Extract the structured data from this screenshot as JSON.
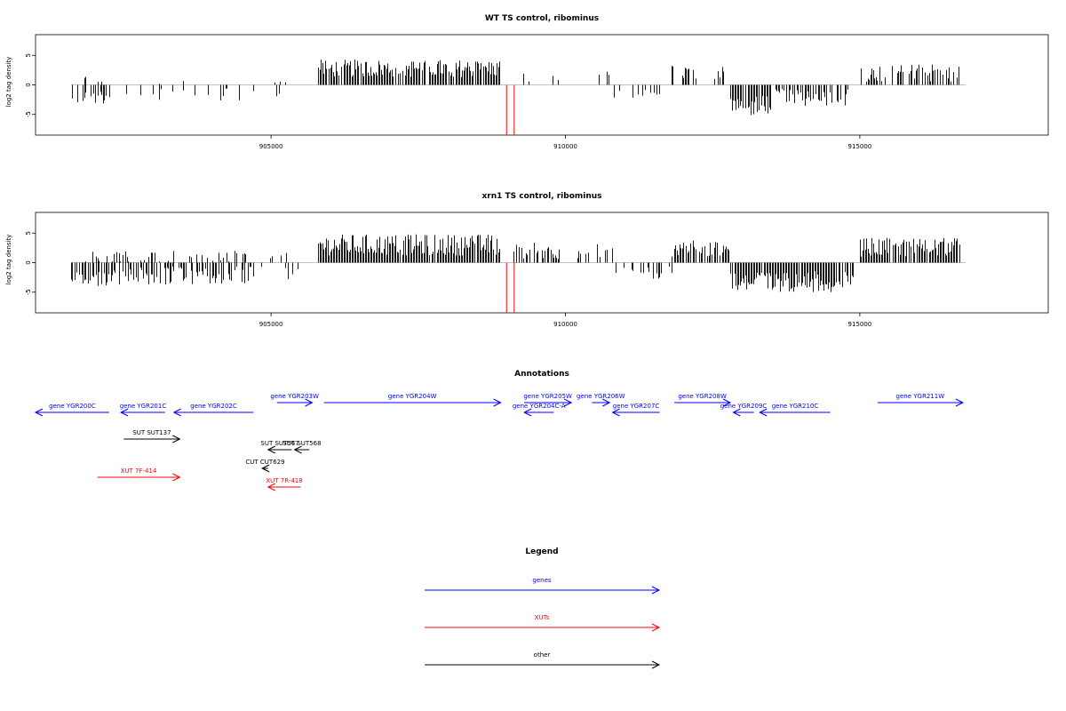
{
  "colors": {
    "bars": "#000000",
    "highlight": "#ff0000",
    "genes": "#0000ff",
    "xuts": "#ff0000",
    "other": "#000000"
  },
  "chart_data": [
    {
      "type": "bar",
      "title": "WT TS control, ribominus",
      "ylabel": "log2 tag density",
      "xlim": [
        901000,
        918200
      ],
      "ylim": [
        -8.5,
        8.5
      ],
      "xticks": [
        905000,
        910000,
        915000
      ],
      "xtick_labels": [
        "905000",
        "910000",
        "915000"
      ],
      "yticks": [
        -5,
        0,
        5
      ],
      "ytick_labels": [
        "-5",
        "0",
        "5"
      ],
      "segments": [
        {
          "from": 901600,
          "to": 902300,
          "sign": -1,
          "mean": 2.0,
          "amp": 1.2,
          "density": 0.55
        },
        {
          "from": 901800,
          "to": 902200,
          "sign": 1,
          "mean": 1.0,
          "amp": 1.0,
          "density": 0.12
        },
        {
          "from": 902400,
          "to": 903300,
          "sign": -1,
          "mean": 1.4,
          "amp": 1.3,
          "density": 0.2
        },
        {
          "from": 903300,
          "to": 904700,
          "sign": -1,
          "mean": 1.6,
          "amp": 1.3,
          "density": 0.14
        },
        {
          "from": 902900,
          "to": 903600,
          "sign": 1,
          "mean": 0.8,
          "amp": 0.8,
          "density": 0.06
        },
        {
          "from": 904700,
          "to": 905500,
          "sign": -1,
          "mean": 1.2,
          "amp": 0.9,
          "density": 0.12
        },
        {
          "from": 904900,
          "to": 905500,
          "sign": 1,
          "mean": 0.9,
          "amp": 1.0,
          "density": 0.1
        },
        {
          "from": 905800,
          "to": 908900,
          "sign": 1,
          "mean": 2.8,
          "amp": 1.5,
          "density": 0.85
        },
        {
          "from": 909100,
          "to": 909900,
          "sign": 1,
          "mean": 1.2,
          "amp": 0.9,
          "density": 0.18
        },
        {
          "from": 910500,
          "to": 910800,
          "sign": 1,
          "mean": 1.4,
          "amp": 0.9,
          "density": 0.35
        },
        {
          "from": 910800,
          "to": 911800,
          "sign": -1,
          "mean": 1.3,
          "amp": 0.9,
          "density": 0.3
        },
        {
          "from": 911800,
          "to": 912700,
          "sign": 1,
          "mean": 2.2,
          "amp": 1.2,
          "density": 0.4
        },
        {
          "from": 912800,
          "to": 913500,
          "sign": -1,
          "mean": 3.6,
          "amp": 1.8,
          "density": 0.85
        },
        {
          "from": 913500,
          "to": 914800,
          "sign": -1,
          "mean": 2.2,
          "amp": 1.5,
          "density": 0.55
        },
        {
          "from": 915000,
          "to": 916700,
          "sign": 1,
          "mean": 2.0,
          "amp": 1.5,
          "density": 0.6
        }
      ],
      "highlight": [
        {
          "x": 909000,
          "y": -8.5
        },
        {
          "x": 909130,
          "y": -8.5
        }
      ]
    },
    {
      "type": "bar",
      "title": "xrn1 TS control, ribominus",
      "ylabel": "log2 tag density",
      "xlim": [
        901000,
        918200
      ],
      "ylim": [
        -8.5,
        8.5
      ],
      "xticks": [
        905000,
        910000,
        915000
      ],
      "xtick_labels": [
        "905000",
        "910000",
        "915000"
      ],
      "yticks": [
        -5,
        0,
        5
      ],
      "ytick_labels": [
        "-5",
        "0",
        "5"
      ],
      "segments": [
        {
          "from": 901600,
          "to": 902300,
          "sign": -1,
          "mean": 2.8,
          "amp": 1.3,
          "density": 0.7
        },
        {
          "from": 901800,
          "to": 902300,
          "sign": 1,
          "mean": 1.0,
          "amp": 1.0,
          "density": 0.15
        },
        {
          "from": 902300,
          "to": 904700,
          "sign": -1,
          "mean": 2.2,
          "amp": 1.6,
          "density": 0.6
        },
        {
          "from": 902300,
          "to": 904700,
          "sign": 1,
          "mean": 1.0,
          "amp": 1.0,
          "density": 0.25
        },
        {
          "from": 904700,
          "to": 905500,
          "sign": -1,
          "mean": 1.6,
          "amp": 1.2,
          "density": 0.25
        },
        {
          "from": 904900,
          "to": 905500,
          "sign": 1,
          "mean": 1.2,
          "amp": 1.2,
          "density": 0.15
        },
        {
          "from": 905800,
          "to": 908900,
          "sign": 1,
          "mean": 3.0,
          "amp": 1.8,
          "density": 0.92
        },
        {
          "from": 909100,
          "to": 909900,
          "sign": 1,
          "mean": 2.0,
          "amp": 1.4,
          "density": 0.6
        },
        {
          "from": 910200,
          "to": 910800,
          "sign": 1,
          "mean": 2.0,
          "amp": 1.3,
          "density": 0.5
        },
        {
          "from": 910800,
          "to": 911800,
          "sign": -1,
          "mean": 1.8,
          "amp": 1.2,
          "density": 0.5
        },
        {
          "from": 911800,
          "to": 912800,
          "sign": 1,
          "mean": 2.4,
          "amp": 1.4,
          "density": 0.7
        },
        {
          "from": 912800,
          "to": 914900,
          "sign": -1,
          "mean": 3.2,
          "amp": 1.8,
          "density": 0.9
        },
        {
          "from": 915000,
          "to": 916700,
          "sign": 1,
          "mean": 2.6,
          "amp": 1.6,
          "density": 0.88
        }
      ],
      "highlight": [
        {
          "x": 909000,
          "y": -8.5
        },
        {
          "x": 909130,
          "y": -8.5
        }
      ]
    }
  ],
  "annotations": {
    "title": "Annotations",
    "items": [
      {
        "label": "gene YGR200C",
        "kind": "genes",
        "from": 901000,
        "to": 902250,
        "dir": "rev",
        "lane": 1
      },
      {
        "label": "gene YGR201C",
        "kind": "genes",
        "from": 902450,
        "to": 903200,
        "dir": "rev",
        "lane": 1
      },
      {
        "label": "gene YGR202C",
        "kind": "genes",
        "from": 903350,
        "to": 904700,
        "dir": "rev",
        "lane": 1
      },
      {
        "label": "gene YGR203W",
        "kind": "genes",
        "from": 905100,
        "to": 905700,
        "dir": "fwd",
        "lane": 0
      },
      {
        "label": "gene YGR204W",
        "kind": "genes",
        "from": 905900,
        "to": 908900,
        "dir": "fwd",
        "lane": 0
      },
      {
        "label": "gene YGR204C-A",
        "kind": "genes",
        "from": 909300,
        "to": 909800,
        "dir": "rev",
        "lane": 1
      },
      {
        "label": "gene YGR205W",
        "kind": "genes",
        "from": 909300,
        "to": 910100,
        "dir": "fwd",
        "lane": 0
      },
      {
        "label": "gene YGR206W",
        "kind": "genes",
        "from": 910450,
        "to": 910750,
        "dir": "fwd",
        "lane": 0
      },
      {
        "label": "gene YGR207C",
        "kind": "genes",
        "from": 910800,
        "to": 911600,
        "dir": "rev",
        "lane": 1
      },
      {
        "label": "gene YGR208W",
        "kind": "genes",
        "from": 911850,
        "to": 912800,
        "dir": "fwd",
        "lane": 0
      },
      {
        "label": "gene YGR209C",
        "kind": "genes",
        "from": 912850,
        "to": 913200,
        "dir": "rev",
        "lane": 1
      },
      {
        "label": "gene YGR210C",
        "kind": "genes",
        "from": 913300,
        "to": 914500,
        "dir": "rev",
        "lane": 1
      },
      {
        "label": "gene YGR211W",
        "kind": "genes",
        "from": 915300,
        "to": 916750,
        "dir": "fwd",
        "lane": 0
      },
      {
        "label": "SUT SUT137",
        "kind": "other",
        "from": 902500,
        "to": 903450,
        "dir": "fwd",
        "lane": 2
      },
      {
        "label": "SUT SUT567",
        "kind": "other",
        "from": 904950,
        "to": 905350,
        "dir": "rev",
        "lane": 3
      },
      {
        "label": "SUT SUT568",
        "kind": "other",
        "from": 905400,
        "to": 905650,
        "dir": "rev",
        "lane": 3
      },
      {
        "label": "CUT CUT629",
        "kind": "other",
        "from": 904850,
        "to": 904950,
        "dir": "rev",
        "lane": 4
      },
      {
        "label": "XUT 7F-414",
        "kind": "xuts",
        "from": 902050,
        "to": 903450,
        "dir": "fwd",
        "lane": 5
      },
      {
        "label": "XUT 7R-418",
        "kind": "xuts",
        "from": 904950,
        "to": 905500,
        "dir": "rev",
        "lane": 6
      }
    ]
  },
  "legend": {
    "title": "Legend",
    "items": [
      {
        "label": "genes",
        "kind": "genes"
      },
      {
        "label": "XUTs",
        "kind": "xuts"
      },
      {
        "label": "other",
        "kind": "other"
      }
    ]
  }
}
